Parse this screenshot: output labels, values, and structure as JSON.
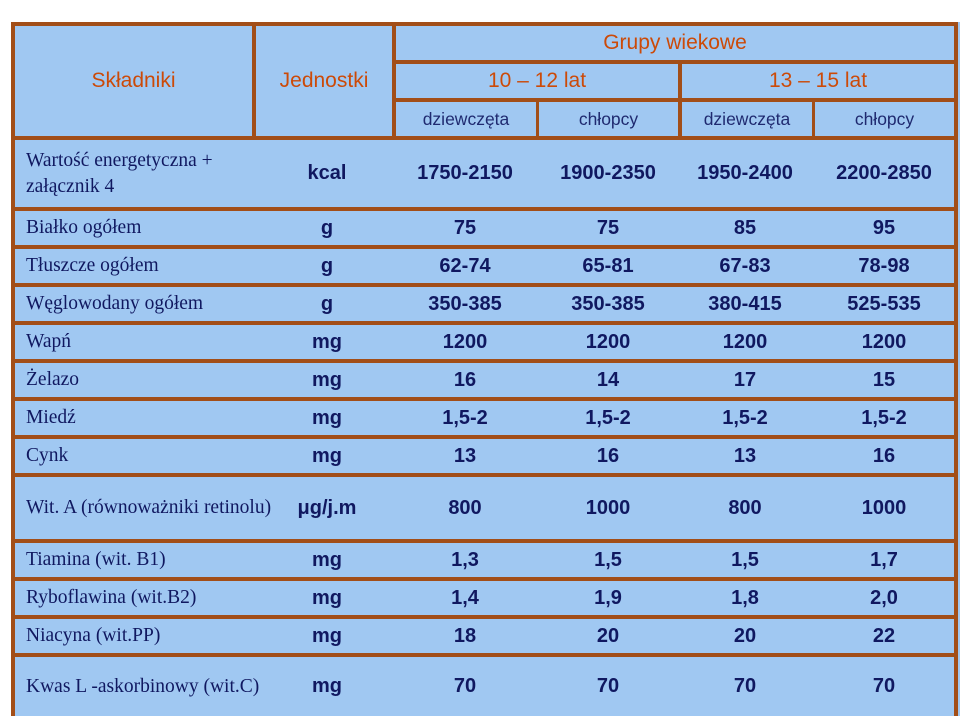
{
  "header": {
    "ingredients": "Składniki",
    "units": "Jednostki",
    "age_groups": "Grupy wiekowe",
    "age_10_12": "10 – 12 lat",
    "age_13_15": "13 – 15 lat",
    "girls": "dziewczęta",
    "boys": "chłopcy"
  },
  "rows": [
    {
      "name": "Wartość energetyczna + załącznik 4",
      "unit": "kcal",
      "v": [
        "1750-2150",
        "1900-2350",
        "1950-2400",
        "2200-2850"
      ]
    },
    {
      "name": "Białko ogółem",
      "unit": "g",
      "v": [
        "75",
        "75",
        "85",
        "95"
      ]
    },
    {
      "name": "Tłuszcze ogółem",
      "unit": "g",
      "v": [
        "62-74",
        "65-81",
        "67-83",
        "78-98"
      ]
    },
    {
      "name": "Węglowodany ogółem",
      "unit": "g",
      "v": [
        "350-385",
        "350-385",
        "380-415",
        "525-535"
      ]
    },
    {
      "name": "Wapń",
      "unit": "mg",
      "v": [
        "1200",
        "1200",
        "1200",
        "1200"
      ]
    },
    {
      "name": "Żelazo",
      "unit": "mg",
      "v": [
        "16",
        "14",
        "17",
        "15"
      ]
    },
    {
      "name": "Miedź",
      "unit": "mg",
      "v": [
        "1,5-2",
        "1,5-2",
        "1,5-2",
        "1,5-2"
      ]
    },
    {
      "name": "Cynk",
      "unit": "mg",
      "v": [
        "13",
        "16",
        "13",
        "16"
      ]
    },
    {
      "name": "Wit. A (równoważniki retinolu)",
      "unit": "μg/j.m",
      "v": [
        "800",
        "1000",
        "800",
        "1000"
      ]
    },
    {
      "name": "Tiamina (wit. B1)",
      "unit": "mg",
      "v": [
        "1,3",
        "1,5",
        "1,5",
        "1,7"
      ]
    },
    {
      "name": "Ryboflawina (wit.B2)",
      "unit": "mg",
      "v": [
        "1,4",
        "1,9",
        "1,8",
        "2,0"
      ]
    },
    {
      "name": "Niacyna (wit.PP)",
      "unit": "mg",
      "v": [
        "18",
        "20",
        "20",
        "22"
      ]
    },
    {
      "name": "Kwas L -askorbinowy (wit.C)",
      "unit": "mg",
      "v": [
        "70",
        "70",
        "70",
        "70"
      ]
    }
  ]
}
